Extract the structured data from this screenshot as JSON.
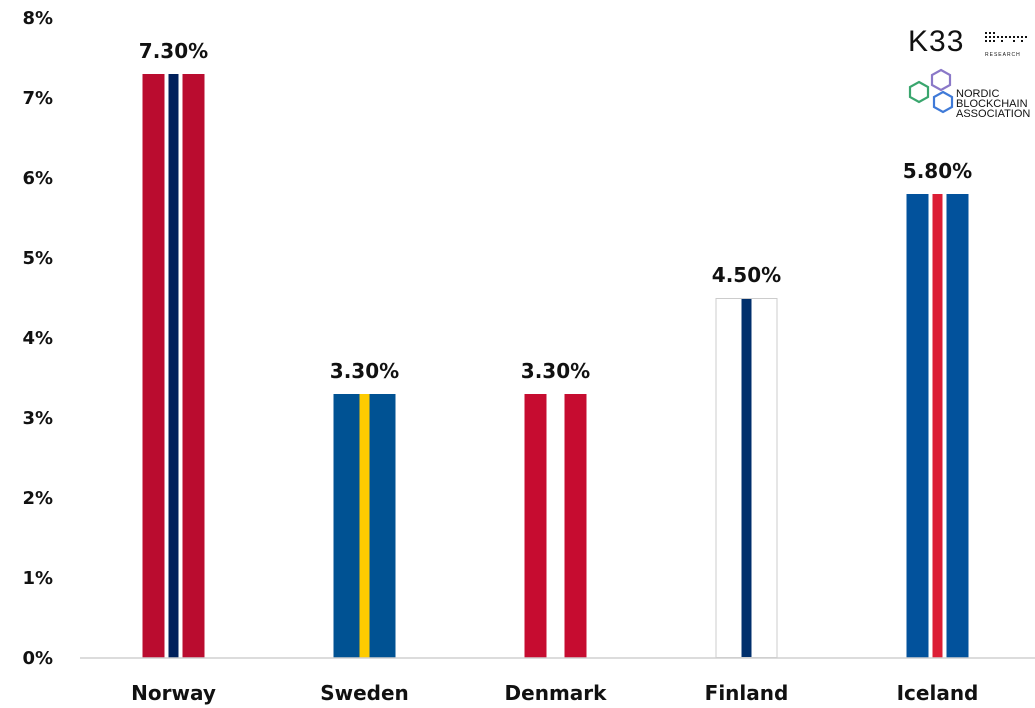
{
  "chart_data": {
    "type": "bar",
    "categories": [
      "Norway",
      "Sweden",
      "Denmark",
      "Finland",
      "Iceland"
    ],
    "values": [
      7.3,
      3.3,
      3.3,
      4.5,
      5.8
    ],
    "value_labels": [
      "7.30%",
      "3.30%",
      "3.30%",
      "4.50%",
      "5.80%"
    ],
    "y_ticks": [
      "0%",
      "1%",
      "2%",
      "3%",
      "4%",
      "5%",
      "6%",
      "7%",
      "8%"
    ],
    "ylim": [
      0,
      8
    ],
    "grid": false,
    "bar_styles": [
      {
        "outer": "#ba0c2f",
        "gap": "#ffffff",
        "center": "#00205b"
      },
      {
        "outer": "#005293",
        "gap": "#005293",
        "center": "#fecb00"
      },
      {
        "outer": "#c60c30",
        "gap": "#ffffff",
        "center": "#ffffff"
      },
      {
        "outer": "#ffffff",
        "gap": "#ffffff",
        "center": "#002f6c",
        "border": "#cccccc"
      },
      {
        "outer": "#02529c",
        "gap": "#ffffff",
        "center": "#dc1e35"
      }
    ],
    "axis_color": "#d0d0d0"
  },
  "logos": {
    "k33": {
      "name": "K33",
      "sub": "RESEARCH"
    },
    "nordic": {
      "line1": "NORDIC",
      "line2": "BLOCKCHAIN",
      "line3": "ASSOCIATION"
    }
  }
}
